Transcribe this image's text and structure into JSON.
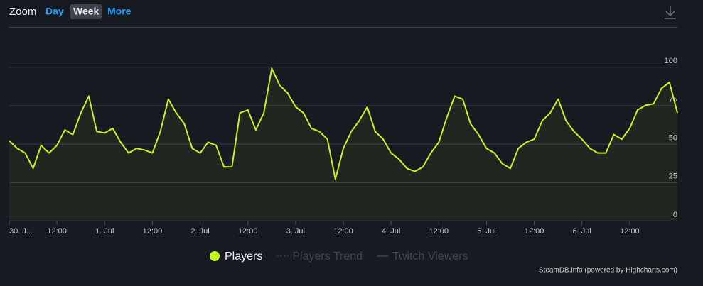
{
  "chart_data": {
    "type": "area-line",
    "zoom": {
      "label": "Zoom",
      "buttons": [
        "Day",
        "Week",
        "More"
      ],
      "selected": 1
    },
    "series": [
      {
        "name": "Players",
        "color": "#c4f51c",
        "x": [
          0,
          2,
          4,
          6,
          8,
          10,
          12,
          14,
          16,
          18,
          20,
          22,
          24,
          26,
          28,
          30,
          32,
          34,
          36,
          38,
          40,
          42,
          44,
          46,
          48,
          50,
          52,
          54,
          56,
          58,
          60,
          62,
          64,
          66,
          68,
          70,
          72,
          74,
          76,
          78,
          80,
          82,
          84,
          86,
          88,
          90,
          92,
          94,
          96,
          98,
          100,
          102,
          104,
          106,
          108,
          110,
          112,
          114,
          116,
          118,
          120,
          122,
          124,
          126,
          128,
          130,
          132,
          134,
          136,
          138,
          140,
          142,
          144,
          146,
          148,
          150,
          152,
          154,
          156,
          158,
          160,
          162,
          164,
          166,
          168
        ],
        "values": [
          52,
          47,
          44,
          34,
          49,
          44,
          49,
          59,
          56,
          70,
          81,
          58,
          57,
          60,
          51,
          44,
          47,
          46,
          44,
          58,
          79,
          70,
          63,
          47,
          44,
          51,
          49,
          35,
          35,
          70,
          72,
          59,
          70,
          99,
          88,
          83,
          74,
          70,
          60,
          58,
          53,
          27,
          47,
          58,
          65,
          74,
          58,
          53,
          44,
          40,
          34,
          32,
          35,
          44,
          51,
          67,
          81,
          79,
          63,
          56,
          47,
          44,
          37,
          34,
          47,
          51,
          53,
          65,
          70,
          79,
          65,
          58,
          53,
          47,
          44,
          44,
          56,
          53,
          60,
          72,
          75,
          76,
          86,
          90,
          70
        ]
      }
    ],
    "hidden_series": [
      "Players Trend",
      "Twitch Viewers"
    ],
    "xlim": [
      0,
      168
    ],
    "xticks": [
      {
        "value": 0,
        "label": "30. J..."
      },
      {
        "value": 12,
        "label": "12:00"
      },
      {
        "value": 24,
        "label": "1. Jul"
      },
      {
        "value": 36,
        "label": "12:00"
      },
      {
        "value": 48,
        "label": "2. Jul"
      },
      {
        "value": 60,
        "label": "12:00"
      },
      {
        "value": 72,
        "label": "3. Jul"
      },
      {
        "value": 84,
        "label": "12:00"
      },
      {
        "value": 96,
        "label": "4. Jul"
      },
      {
        "value": 108,
        "label": "12:00"
      },
      {
        "value": 120,
        "label": "5. Jul"
      },
      {
        "value": 132,
        "label": "12:00"
      },
      {
        "value": 144,
        "label": "6. Jul"
      },
      {
        "value": 156,
        "label": "12:00"
      }
    ],
    "ylim": [
      0,
      125
    ],
    "yticks": [
      0,
      25,
      50,
      75,
      100
    ],
    "grid": true,
    "credits": "SteamDB.info (powered by Highcharts.com)"
  }
}
